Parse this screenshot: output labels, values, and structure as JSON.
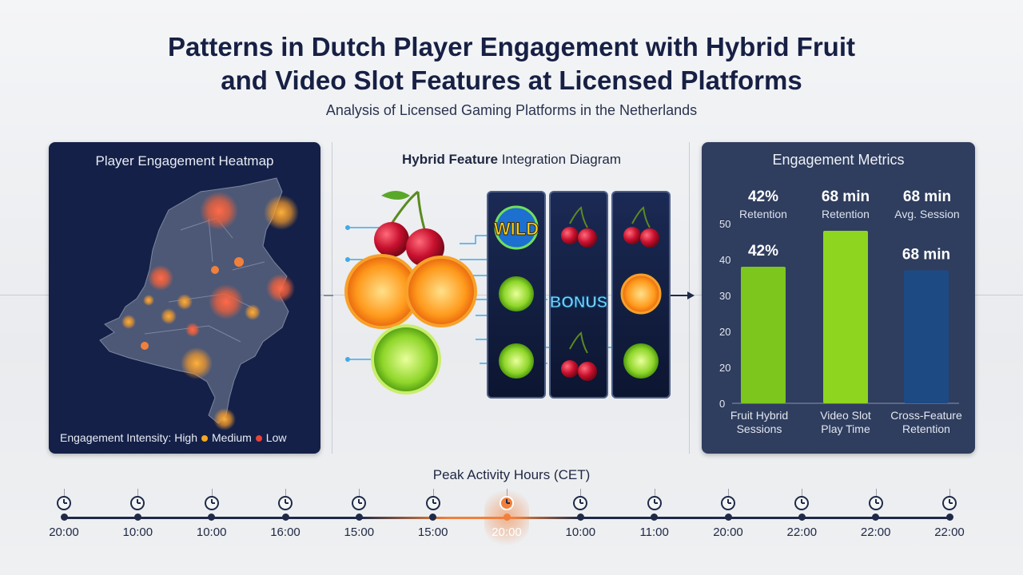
{
  "header": {
    "title_line1": "Patterns in Dutch Player Engagement with Hybrid Fruit",
    "title_line2": "and Video Slot Features at Licensed Platforms",
    "subtitle": "Analysis of Licensed Gaming Platforms in the Netherlands"
  },
  "heatmap": {
    "title": "Player Engagement Heatmap",
    "legend_prefix": "Engagement Intensity:",
    "legend_items": [
      "High",
      "Medium",
      "Low"
    ],
    "legend_colors": [
      "#f5a623",
      "#f0803c",
      "#e8423a"
    ]
  },
  "diagram": {
    "title_bold": "Hybrid Feature",
    "title_rest": " Integration Diagram",
    "wild_label": "WILD",
    "bonus_label": "BONUS"
  },
  "metrics": {
    "title": "Engagement Metrics",
    "top": [
      {
        "value": "42%",
        "label": "Retention"
      },
      {
        "value": "68 min",
        "label": "Retention"
      },
      {
        "value": "68 min",
        "label": "Avg. Session"
      }
    ]
  },
  "chart_data": {
    "type": "bar",
    "categories": [
      "Fruit Hybrid Sessions",
      "Video Slot Play Time",
      "Cross-Feature Retention"
    ],
    "category_lines": [
      [
        "Fruit Hybrid",
        "Sessions"
      ],
      [
        "Video Slot",
        "Play Time"
      ],
      [
        "Cross-Feature",
        "Retention"
      ]
    ],
    "values": [
      38,
      48,
      37
    ],
    "bar_labels": [
      "42%",
      "",
      "68 min"
    ],
    "yticks": [
      "0",
      "20",
      "20",
      "30",
      "40",
      "50"
    ],
    "ylim": [
      0,
      50
    ],
    "colors": [
      "#7cc61e",
      "#8ed51f",
      "#1e4a84"
    ]
  },
  "timeline": {
    "title": "Peak Activity Hours (CET)",
    "labels": [
      "20:00",
      "10:00",
      "10:00",
      "16:00",
      "15:00",
      "15:00",
      "20:00",
      "10:00",
      "11:00",
      "20:00",
      "22:00",
      "22:00",
      "22:00"
    ],
    "highlight_index": 6,
    "highlight_color": "#f0803c"
  }
}
